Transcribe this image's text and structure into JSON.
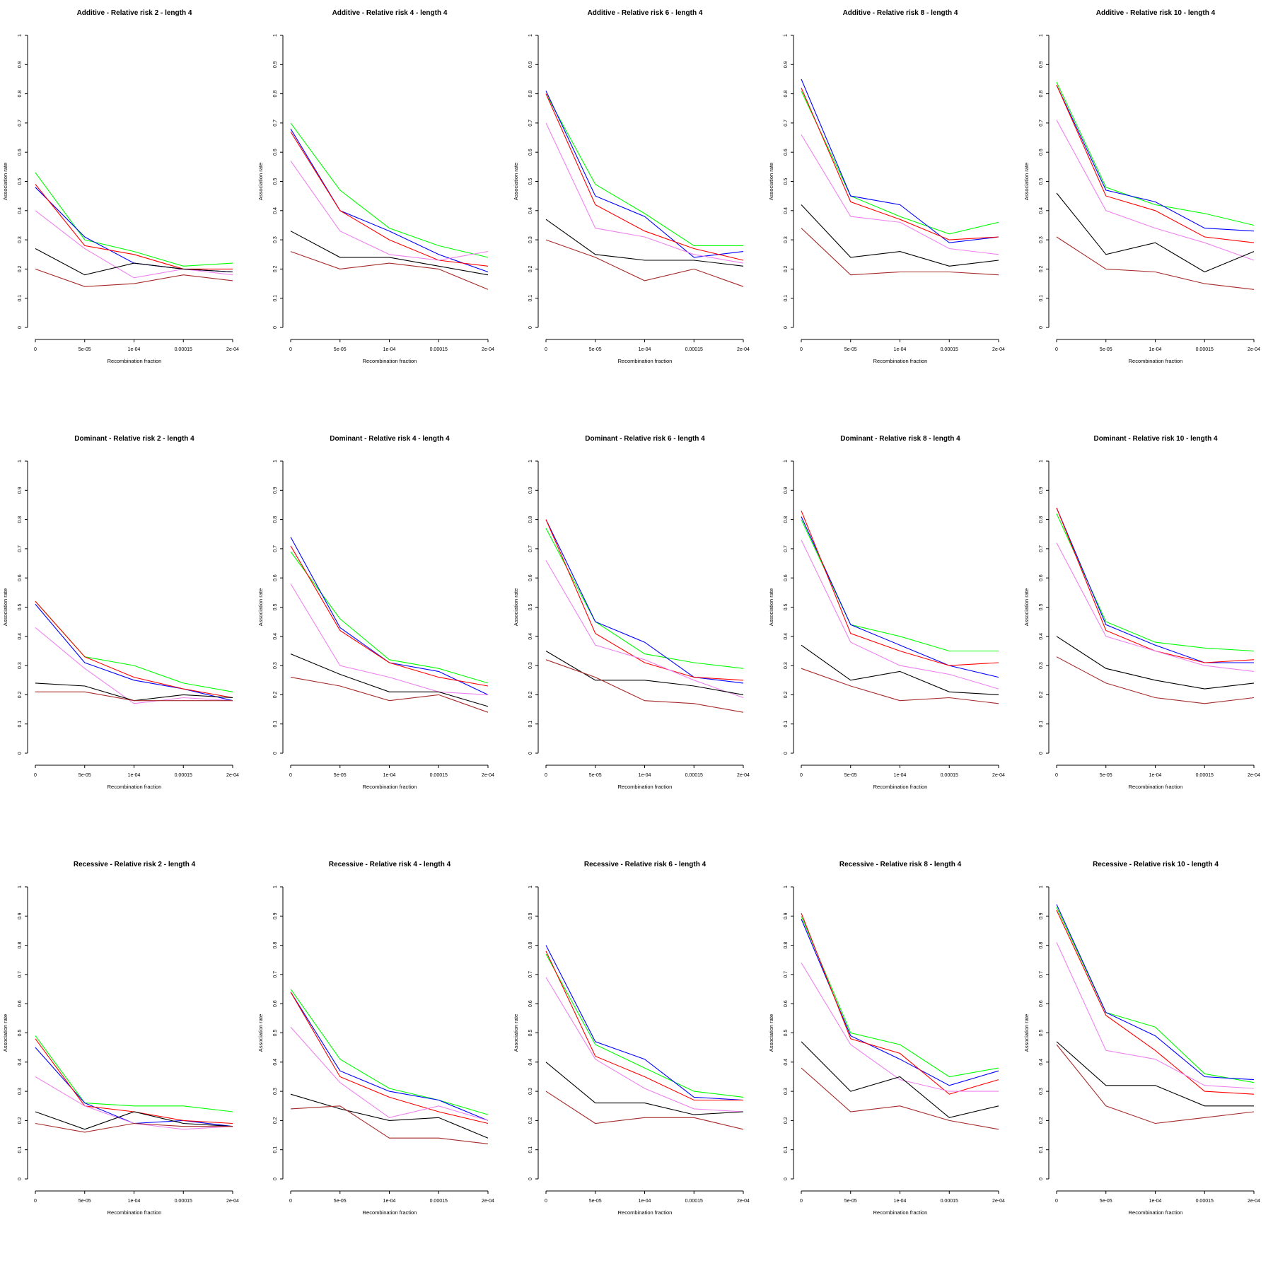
{
  "chart_data": {
    "type": "line",
    "layout": "grid 3 rows x 5 columns",
    "shared": {
      "x_ticks": [
        "0",
        "5e-05",
        "1e-04",
        "0.00015",
        "2e-04"
      ],
      "x": [
        0,
        5e-05,
        0.0001,
        0.00015,
        0.0002
      ],
      "y_ticks": [
        "0",
        "0.1",
        "0.2",
        "0.3",
        "0.4",
        "0.5",
        "0.6",
        "0.7",
        "0.8",
        "0.9",
        "1"
      ],
      "ylim": [
        0,
        1
      ],
      "xlabel": "Recombination fraction",
      "ylabel": "Association rate",
      "grid": false,
      "series_colors": [
        "#00ff00",
        "#0000ff",
        "#ff0000",
        "#ee82ee",
        "#000000",
        "#a52a2a"
      ],
      "series_names": [
        "green",
        "blue",
        "red",
        "violet",
        "black",
        "brown"
      ]
    },
    "panels": [
      {
        "title": "Additive  - Relative risk 2 - length 4",
        "series": [
          [
            0.53,
            0.3,
            0.26,
            0.21,
            0.22
          ],
          [
            0.48,
            0.31,
            0.22,
            0.2,
            0.19
          ],
          [
            0.49,
            0.28,
            0.25,
            0.2,
            0.2
          ],
          [
            0.4,
            0.27,
            0.17,
            0.2,
            0.18
          ],
          [
            0.27,
            0.18,
            0.22,
            0.2,
            0.19
          ],
          [
            0.2,
            0.14,
            0.15,
            0.18,
            0.16
          ]
        ]
      },
      {
        "title": "Additive  - Relative risk 4 - length 4",
        "series": [
          [
            0.7,
            0.47,
            0.34,
            0.28,
            0.24
          ],
          [
            0.68,
            0.4,
            0.33,
            0.25,
            0.19
          ],
          [
            0.67,
            0.4,
            0.3,
            0.23,
            0.21
          ],
          [
            0.57,
            0.33,
            0.25,
            0.23,
            0.26
          ],
          [
            0.33,
            0.24,
            0.24,
            0.21,
            0.18
          ],
          [
            0.26,
            0.2,
            0.22,
            0.2,
            0.13
          ]
        ]
      },
      {
        "title": "Additive  - Relative risk 6 - length 4",
        "series": [
          [
            0.8,
            0.49,
            0.39,
            0.28,
            0.28
          ],
          [
            0.81,
            0.45,
            0.38,
            0.24,
            0.26
          ],
          [
            0.8,
            0.42,
            0.33,
            0.27,
            0.23
          ],
          [
            0.7,
            0.34,
            0.31,
            0.25,
            0.22
          ],
          [
            0.37,
            0.25,
            0.23,
            0.23,
            0.21
          ],
          [
            0.3,
            0.24,
            0.16,
            0.2,
            0.14
          ]
        ]
      },
      {
        "title": "Additive  - Relative risk 8 - length 4",
        "series": [
          [
            0.81,
            0.45,
            0.38,
            0.32,
            0.36
          ],
          [
            0.85,
            0.45,
            0.42,
            0.29,
            0.31
          ],
          [
            0.82,
            0.43,
            0.37,
            0.3,
            0.31
          ],
          [
            0.66,
            0.38,
            0.36,
            0.27,
            0.25
          ],
          [
            0.42,
            0.24,
            0.26,
            0.21,
            0.23
          ],
          [
            0.34,
            0.18,
            0.19,
            0.19,
            0.18
          ]
        ]
      },
      {
        "title": "Additive  - Relative risk 10 - length 4",
        "series": [
          [
            0.84,
            0.48,
            0.42,
            0.39,
            0.35
          ],
          [
            0.83,
            0.47,
            0.43,
            0.34,
            0.33
          ],
          [
            0.83,
            0.45,
            0.4,
            0.31,
            0.29
          ],
          [
            0.71,
            0.4,
            0.34,
            0.29,
            0.23
          ],
          [
            0.46,
            0.25,
            0.29,
            0.19,
            0.26
          ],
          [
            0.31,
            0.2,
            0.19,
            0.15,
            0.13
          ]
        ]
      },
      {
        "title": "Dominant  - Relative risk 2 - length 4",
        "series": [
          [
            0.52,
            0.33,
            0.3,
            0.24,
            0.21
          ],
          [
            0.51,
            0.31,
            0.25,
            0.22,
            0.18
          ],
          [
            0.52,
            0.33,
            0.26,
            0.22,
            0.19
          ],
          [
            0.43,
            0.29,
            0.17,
            0.19,
            0.18
          ],
          [
            0.24,
            0.23,
            0.18,
            0.2,
            0.19
          ],
          [
            0.21,
            0.21,
            0.18,
            0.18,
            0.18
          ]
        ]
      },
      {
        "title": "Dominant  - Relative risk 4 - length 4",
        "series": [
          [
            0.69,
            0.46,
            0.32,
            0.29,
            0.24
          ],
          [
            0.74,
            0.43,
            0.31,
            0.28,
            0.2
          ],
          [
            0.71,
            0.42,
            0.31,
            0.26,
            0.23
          ],
          [
            0.58,
            0.3,
            0.26,
            0.21,
            0.2
          ],
          [
            0.34,
            0.27,
            0.21,
            0.21,
            0.16
          ],
          [
            0.26,
            0.23,
            0.18,
            0.2,
            0.14
          ]
        ]
      },
      {
        "title": "Dominant  - Relative risk 6 - length 4",
        "series": [
          [
            0.77,
            0.45,
            0.34,
            0.31,
            0.29
          ],
          [
            0.8,
            0.45,
            0.38,
            0.26,
            0.24
          ],
          [
            0.8,
            0.41,
            0.31,
            0.26,
            0.25
          ],
          [
            0.66,
            0.37,
            0.32,
            0.25,
            0.19
          ],
          [
            0.35,
            0.25,
            0.25,
            0.23,
            0.2
          ],
          [
            0.32,
            0.26,
            0.18,
            0.17,
            0.14
          ]
        ]
      },
      {
        "title": "Dominant  - Relative risk 8 - length 4",
        "series": [
          [
            0.8,
            0.44,
            0.4,
            0.35,
            0.35
          ],
          [
            0.81,
            0.44,
            0.37,
            0.3,
            0.26
          ],
          [
            0.83,
            0.41,
            0.35,
            0.3,
            0.31
          ],
          [
            0.73,
            0.38,
            0.3,
            0.27,
            0.22
          ],
          [
            0.37,
            0.25,
            0.28,
            0.21,
            0.2
          ],
          [
            0.29,
            0.23,
            0.18,
            0.19,
            0.17
          ]
        ]
      },
      {
        "title": "Dominant  - Relative risk 10 - length 4",
        "series": [
          [
            0.82,
            0.45,
            0.38,
            0.36,
            0.35
          ],
          [
            0.84,
            0.44,
            0.37,
            0.31,
            0.31
          ],
          [
            0.84,
            0.42,
            0.35,
            0.31,
            0.32
          ],
          [
            0.72,
            0.4,
            0.35,
            0.3,
            0.28
          ],
          [
            0.4,
            0.29,
            0.25,
            0.22,
            0.24
          ],
          [
            0.33,
            0.24,
            0.19,
            0.17,
            0.19
          ]
        ]
      },
      {
        "title": "Recessive  - Relative risk 2 - length 4",
        "series": [
          [
            0.49,
            0.26,
            0.25,
            0.25,
            0.23
          ],
          [
            0.45,
            0.26,
            0.19,
            0.2,
            0.18
          ],
          [
            0.48,
            0.25,
            0.23,
            0.2,
            0.19
          ],
          [
            0.35,
            0.25,
            0.19,
            0.17,
            0.18
          ],
          [
            0.23,
            0.17,
            0.23,
            0.19,
            0.18
          ],
          [
            0.19,
            0.16,
            0.19,
            0.18,
            0.18
          ]
        ]
      },
      {
        "title": "Recessive  - Relative risk 4 - length 4",
        "series": [
          [
            0.65,
            0.41,
            0.31,
            0.27,
            0.22
          ],
          [
            0.64,
            0.37,
            0.3,
            0.27,
            0.2
          ],
          [
            0.64,
            0.35,
            0.28,
            0.23,
            0.19
          ],
          [
            0.52,
            0.33,
            0.21,
            0.25,
            0.2
          ],
          [
            0.29,
            0.24,
            0.2,
            0.21,
            0.14
          ],
          [
            0.24,
            0.25,
            0.14,
            0.14,
            0.12
          ]
        ]
      },
      {
        "title": "Recessive  - Relative risk 6 - length 4",
        "series": [
          [
            0.77,
            0.46,
            0.38,
            0.3,
            0.28
          ],
          [
            0.8,
            0.47,
            0.41,
            0.28,
            0.27
          ],
          [
            0.78,
            0.42,
            0.35,
            0.27,
            0.27
          ],
          [
            0.69,
            0.41,
            0.31,
            0.24,
            0.23
          ],
          [
            0.4,
            0.26,
            0.26,
            0.22,
            0.23
          ],
          [
            0.3,
            0.19,
            0.21,
            0.21,
            0.17
          ]
        ]
      },
      {
        "title": "Recessive  - Relative risk 8 - length 4",
        "series": [
          [
            0.9,
            0.5,
            0.46,
            0.35,
            0.38
          ],
          [
            0.89,
            0.49,
            0.41,
            0.32,
            0.37
          ],
          [
            0.91,
            0.48,
            0.43,
            0.29,
            0.34
          ],
          [
            0.74,
            0.46,
            0.34,
            0.3,
            0.3
          ],
          [
            0.47,
            0.3,
            0.35,
            0.21,
            0.25
          ],
          [
            0.38,
            0.23,
            0.25,
            0.2,
            0.17
          ]
        ]
      },
      {
        "title": "Recessive  - Relative risk 10 - length 4",
        "series": [
          [
            0.93,
            0.57,
            0.52,
            0.36,
            0.33
          ],
          [
            0.94,
            0.57,
            0.49,
            0.35,
            0.34
          ],
          [
            0.92,
            0.56,
            0.44,
            0.3,
            0.29
          ],
          [
            0.81,
            0.44,
            0.41,
            0.32,
            0.31
          ],
          [
            0.47,
            0.32,
            0.32,
            0.25,
            0.25
          ],
          [
            0.46,
            0.25,
            0.19,
            0.21,
            0.23
          ]
        ]
      }
    ]
  }
}
